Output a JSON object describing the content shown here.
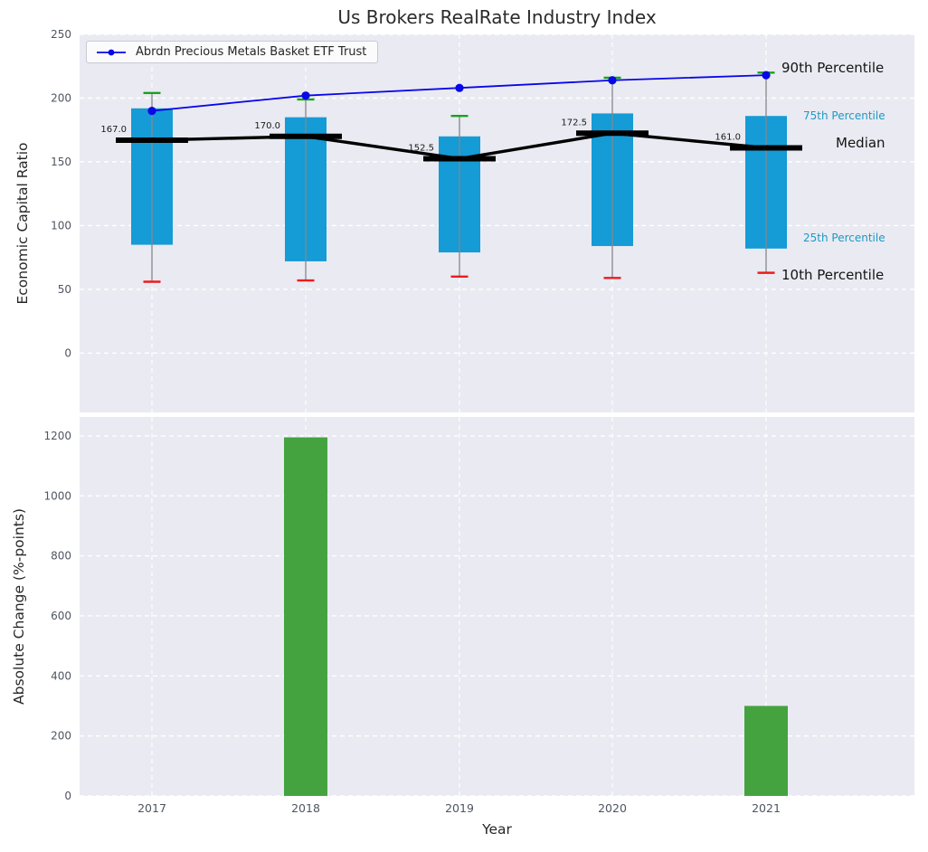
{
  "colors": {
    "panel_bg": "#eaeaf2",
    "grid": "#ffffff",
    "box": "#159bd5",
    "bar": "#44a33f",
    "etf": "#0707e8",
    "median": "#000000",
    "cap_top": "#17a317",
    "cap_bottom": "#ee1b1b",
    "whisker": "#85878c",
    "tick": "#4f5560",
    "annotation": "#1a1a1a",
    "cyan_label": "#1b9ac4"
  },
  "chart_data": [
    {
      "type": "boxplot+line",
      "title": "Us Brokers RealRate Industry Index",
      "ylabel": "Economic Capital Ratio",
      "categories": [
        2017,
        2018,
        2019,
        2020,
        2021
      ],
      "yticks": [
        0,
        50,
        100,
        150,
        200,
        250
      ],
      "ylim": [
        -46.5,
        250
      ],
      "grid": "dashed-white-on-gray",
      "legend_position": "upper left",
      "series": [
        {
          "role": "etf",
          "name": "Abrdn Precious Metals Basket ETF Trust",
          "type": "line+markers",
          "values": [
            190,
            202,
            208,
            214,
            218
          ]
        },
        {
          "role": "p90",
          "name": "90th Percentile",
          "type": "whisker-cap-top",
          "values": [
            204,
            199,
            186,
            216,
            220
          ]
        },
        {
          "role": "p75",
          "name": "75th Percentile",
          "type": "box-top",
          "values": [
            192,
            185,
            170,
            188,
            186
          ]
        },
        {
          "role": "median",
          "name": "Median",
          "type": "median-line",
          "values": [
            167.0,
            170.0,
            152.5,
            172.5,
            161.0
          ]
        },
        {
          "role": "p25",
          "name": "25th Percentile",
          "type": "box-bottom",
          "values": [
            85,
            72,
            79,
            84,
            82
          ]
        },
        {
          "role": "p10",
          "name": "10th Percentile",
          "type": "whisker-cap-bottom",
          "values": [
            56,
            57,
            60,
            59,
            63
          ]
        }
      ],
      "median_annotations": [
        "167.0",
        "170.0",
        "152.5",
        "172.5",
        "161.0"
      ],
      "right_labels": [
        {
          "text": "90th Percentile",
          "style": "large-black"
        },
        {
          "text": "75th Percentile",
          "style": "small-cyan"
        },
        {
          "text": "Median",
          "style": "large-black"
        },
        {
          "text": "25th Percentile",
          "style": "small-cyan"
        },
        {
          "text": "10th Percentile",
          "style": "large-black"
        }
      ]
    },
    {
      "type": "bar",
      "ylabel": "Absolute Change (%-points)",
      "xlabel": "Year",
      "categories": [
        2017,
        2018,
        2019,
        2020,
        2021
      ],
      "values": [
        0,
        1195,
        0,
        0,
        300
      ],
      "yticks": [
        0,
        200,
        400,
        600,
        800,
        1000,
        1200
      ],
      "ylim": [
        0,
        1263
      ],
      "grid": "dashed-white-on-gray"
    }
  ]
}
